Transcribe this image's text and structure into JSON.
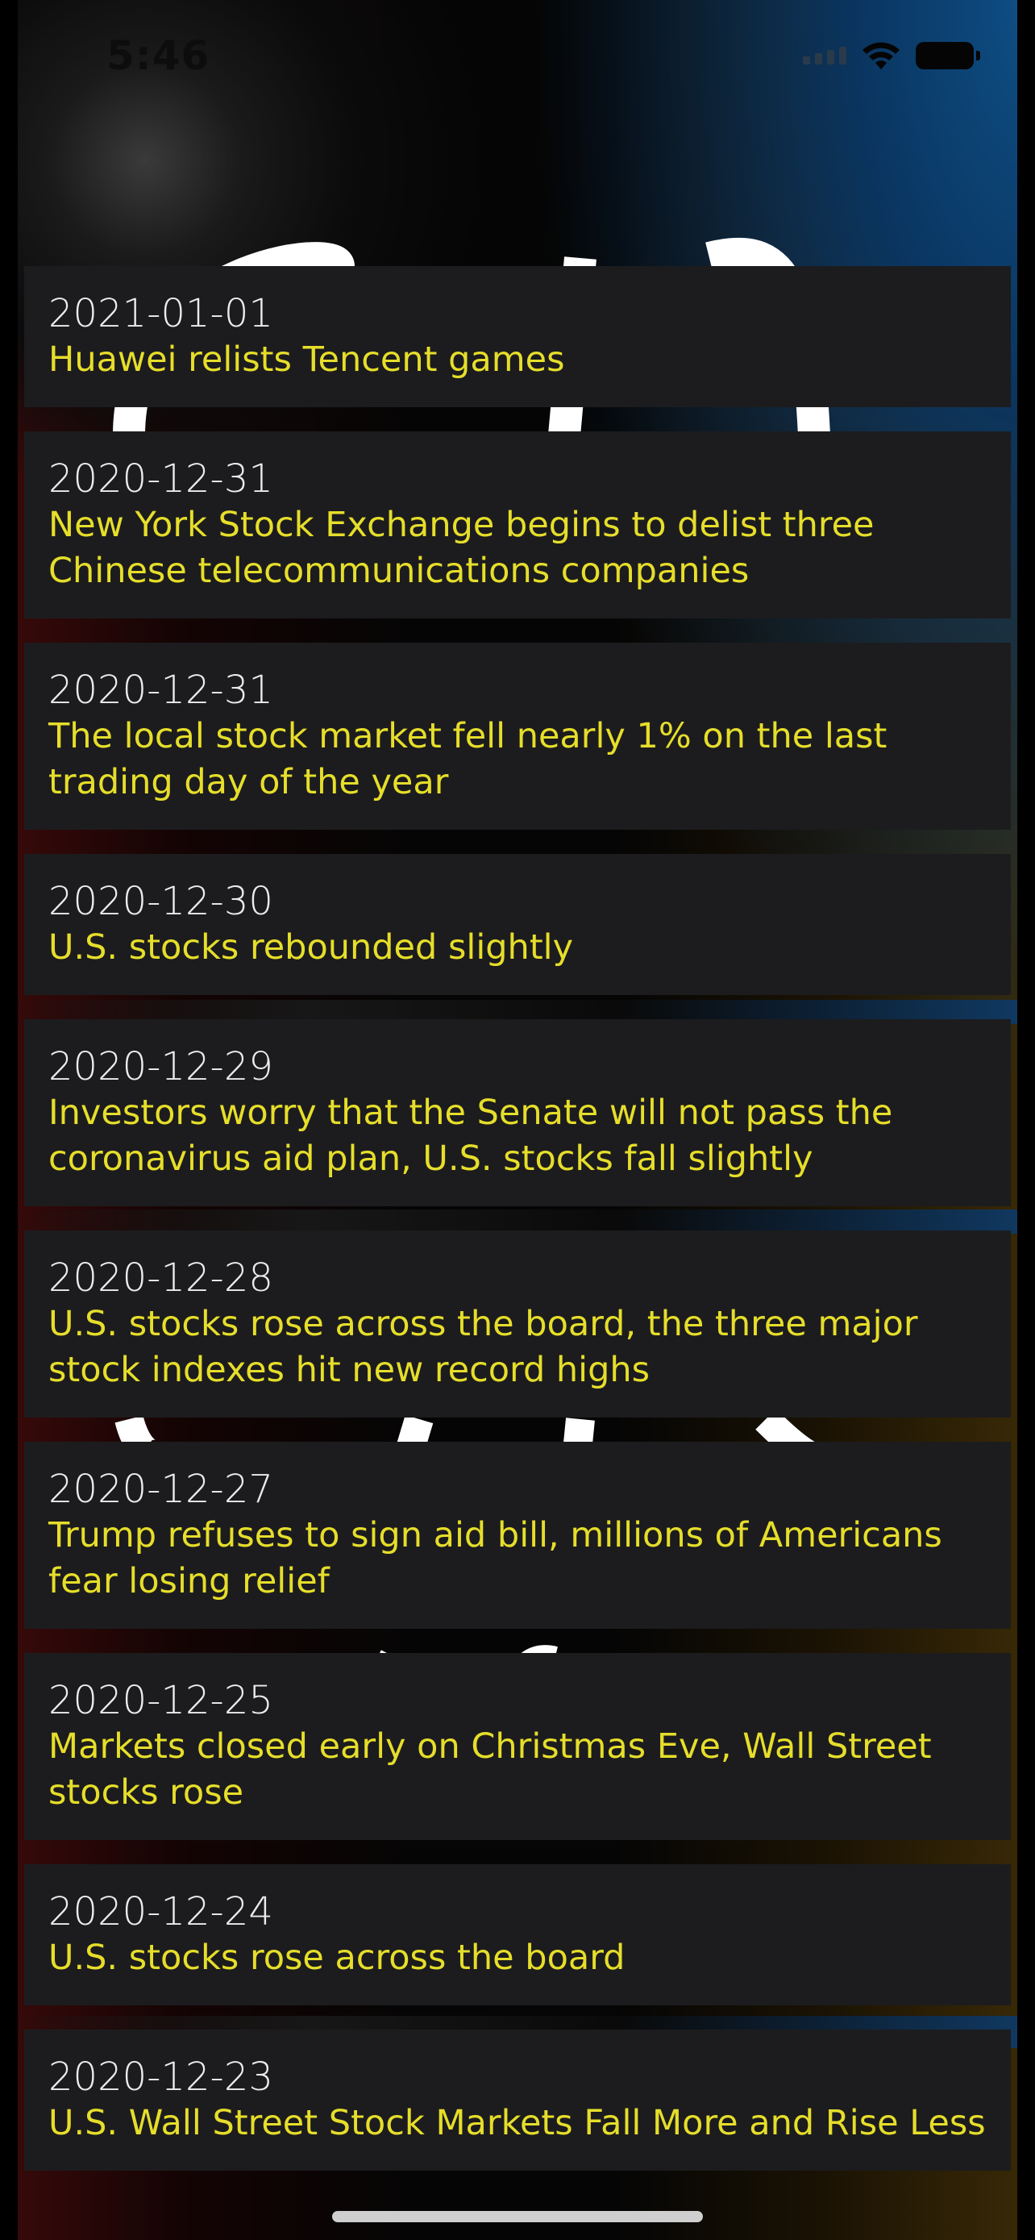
{
  "status_bar": {
    "time": "5:46"
  },
  "news": [
    {
      "date": "2021-01-01",
      "title": "Huawei relists Tencent games"
    },
    {
      "date": "2020-12-31",
      "title": "New York Stock Exchange begins to delist three Chinese telecommunications companies"
    },
    {
      "date": "2020-12-31",
      "title": "The local stock market fell nearly 1% on the last trading day of the year"
    },
    {
      "date": "2020-12-30",
      "title": "U.S. stocks rebounded slightly"
    },
    {
      "date": "2020-12-29",
      "title": "Investors worry that the Senate will not pass the coronavirus aid plan, U.S. stocks fall slightly"
    },
    {
      "date": "2020-12-28",
      "title": "U.S. stocks rose across the board, the three major stock indexes hit new record highs"
    },
    {
      "date": "2020-12-27",
      "title": "Trump refuses to sign aid bill, millions of Americans fear losing relief"
    },
    {
      "date": "2020-12-25",
      "title": "Markets closed early on Christmas Eve, Wall Street stocks rose"
    },
    {
      "date": "2020-12-24",
      "title": "U.S. stocks rose across the board"
    },
    {
      "date": "2020-12-23",
      "title": "U.S. Wall Street Stock Markets Fall More and Rise Less"
    }
  ],
  "colors": {
    "card_background": "#1c1c1e",
    "date_text": "#ececec",
    "title_text": "#e6de2a"
  },
  "icons": {
    "signal": "cellular-signal-icon",
    "wifi": "wifi-icon",
    "battery": "battery-icon"
  }
}
